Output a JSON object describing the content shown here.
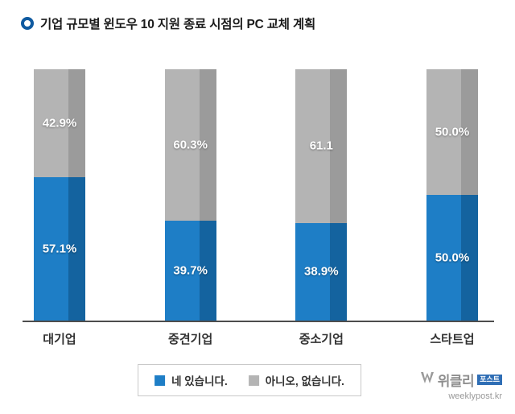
{
  "title": "기업 규모별 윈도우 10 지원 종료 시점의 PC 교체 계획",
  "legend": {
    "yes_label": "네 있습니다.",
    "no_label": "아니오, 없습니다."
  },
  "watermark": {
    "brand": "위클리",
    "badge": "포스트",
    "url": "weeklypost.kr"
  },
  "colors": {
    "yes": "#1e7ec6",
    "yes_dark": "#14639f",
    "no": "#b4b4b4",
    "no_dark": "#9b9b9b",
    "accent": "#0f5aa0",
    "baseline": "#4d4d4d"
  },
  "chart_data": {
    "type": "bar",
    "stacked": true,
    "title": "기업 규모별 윈도우 10 지원 종료 시점의 PC 교체 계획",
    "categories": [
      "대기업",
      "중견기업",
      "중소기업",
      "스타트업"
    ],
    "series": [
      {
        "name": "네 있습니다.",
        "values": [
          57.1,
          39.7,
          38.9,
          50.0
        ],
        "labels": [
          "57.1%",
          "39.7%",
          "38.9%",
          "50.0%"
        ],
        "color": "#1e7ec6"
      },
      {
        "name": "아니오, 없습니다.",
        "values": [
          42.9,
          60.3,
          61.1,
          50.0
        ],
        "labels": [
          "42.9%",
          "60.3%",
          "61.1",
          "50.0%"
        ],
        "color": "#b4b4b4"
      }
    ],
    "ylim": [
      0,
      100
    ],
    "grid": false,
    "legend_position": "bottom"
  }
}
